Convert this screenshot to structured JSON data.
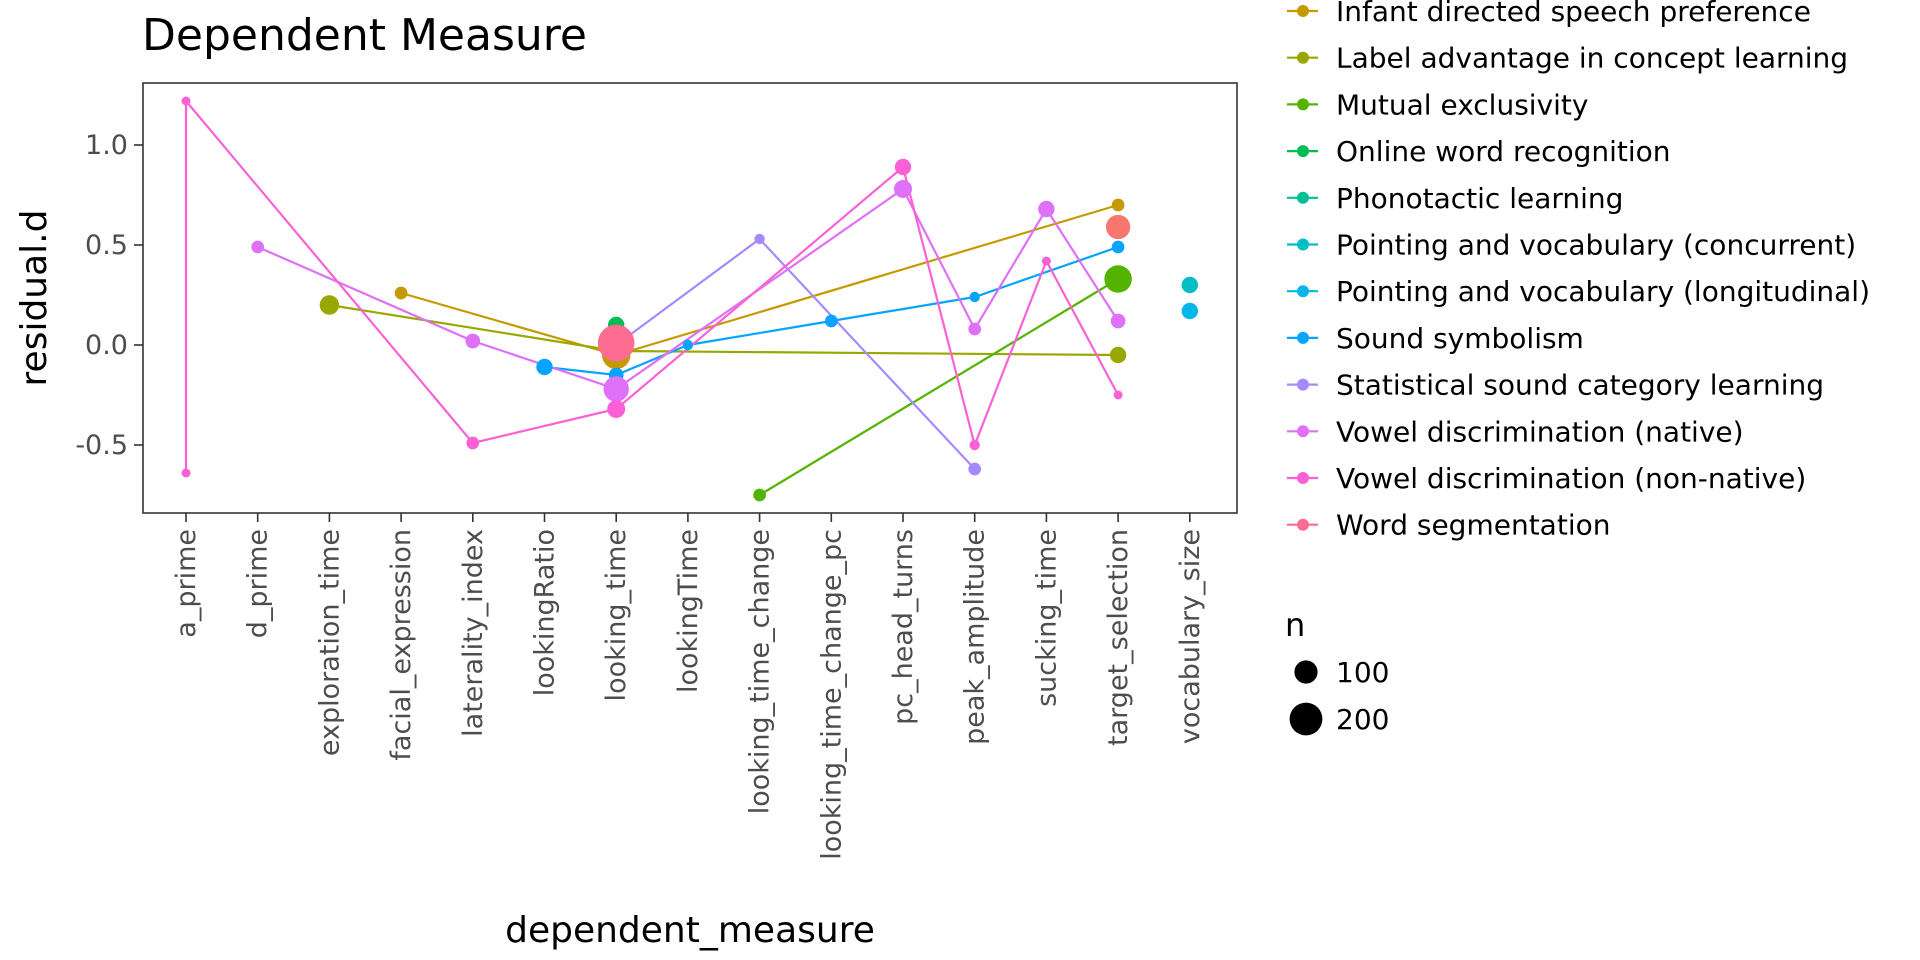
{
  "chart_data": {
    "type": "scatter",
    "title": "Dependent Measure",
    "xlabel": "dependent_measure",
    "ylabel": "residual.d",
    "categories": [
      "a_prime",
      "d_prime",
      "exploration_time",
      "facial_expression",
      "laterality_index",
      "lookingRatio",
      "looking_time",
      "lookingTime",
      "looking_time_change",
      "looking_time_change_pc",
      "pc_head_turns",
      "peak_amplitude",
      "sucking_time",
      "target_selection",
      "vocabulary_size"
    ],
    "y_ticks": [
      -0.5,
      0.0,
      0.5,
      1.0
    ],
    "y_tick_labels": [
      "-0.5",
      "0.0",
      "0.5",
      "1.0"
    ],
    "ylim": [
      -0.84,
      1.31
    ],
    "grid": false,
    "legend_position": "right",
    "size_legend": {
      "title": "n",
      "entries": [
        {
          "label": "100",
          "value": 100
        },
        {
          "label": "200",
          "value": 200
        }
      ]
    },
    "series": [
      {
        "name": "Infant directed speech preference",
        "color": "#C49A00",
        "points": [
          {
            "x": "facial_expression",
            "y": 0.26,
            "n": 30
          },
          {
            "x": "looking_time",
            "y": -0.05,
            "n": 150
          },
          {
            "x": "target_selection",
            "y": 0.7,
            "n": 30
          }
        ]
      },
      {
        "name": "Label advantage in concept learning",
        "color": "#99A800",
        "points": [
          {
            "x": "exploration_time",
            "y": 0.2,
            "n": 70
          },
          {
            "x": "looking_time",
            "y": -0.03,
            "n": 60
          },
          {
            "x": "target_selection",
            "y": -0.05,
            "n": 50
          }
        ]
      },
      {
        "name": "Mutual exclusivity",
        "color": "#53B400",
        "points": [
          {
            "x": "looking_time_change",
            "y": -0.75,
            "n": 30
          },
          {
            "x": "target_selection",
            "y": 0.33,
            "n": 140
          }
        ]
      },
      {
        "name": "Online word recognition",
        "color": "#00BC56",
        "points": [
          {
            "x": "looking_time",
            "y": 0.1,
            "n": 50
          }
        ]
      },
      {
        "name": "Phonotactic learning",
        "color": "#00C094",
        "points": [
          {
            "x": "looking_time",
            "y": 0.05,
            "n": 40
          }
        ]
      },
      {
        "name": "Pointing and vocabulary (concurrent)",
        "color": "#00BFC4",
        "points": [
          {
            "x": "vocabulary_size",
            "y": 0.3,
            "n": 50
          }
        ]
      },
      {
        "name": "Pointing and vocabulary (longitudinal)",
        "color": "#00B6EB",
        "points": [
          {
            "x": "vocabulary_size",
            "y": 0.17,
            "n": 50
          }
        ]
      },
      {
        "name": "Sound symbolism",
        "color": "#06A4FF",
        "points": [
          {
            "x": "lookingRatio",
            "y": -0.11,
            "n": 50
          },
          {
            "x": "looking_time",
            "y": -0.15,
            "n": 40
          },
          {
            "x": "lookingTime",
            "y": 0.0,
            "n": 20
          },
          {
            "x": "looking_time_change_pc",
            "y": 0.12,
            "n": 30
          },
          {
            "x": "peak_amplitude",
            "y": 0.24,
            "n": 20
          },
          {
            "x": "target_selection",
            "y": 0.49,
            "n": 30
          }
        ]
      },
      {
        "name": "Statistical sound category learning",
        "color": "#A58AFF",
        "points": [
          {
            "x": "looking_time",
            "y": 0.0,
            "n": 30
          },
          {
            "x": "looking_time_change",
            "y": 0.53,
            "n": 20
          },
          {
            "x": "peak_amplitude",
            "y": -0.62,
            "n": 30
          }
        ]
      },
      {
        "name": "Vowel discrimination (native)",
        "color": "#DF70F8",
        "points": [
          {
            "x": "d_prime",
            "y": 0.49,
            "n": 30
          },
          {
            "x": "laterality_index",
            "y": 0.02,
            "n": 40
          },
          {
            "x": "looking_time",
            "y": -0.22,
            "n": 120
          },
          {
            "x": "pc_head_turns",
            "y": 0.78,
            "n": 60
          },
          {
            "x": "peak_amplitude",
            "y": 0.08,
            "n": 30
          },
          {
            "x": "sucking_time",
            "y": 0.68,
            "n": 50
          },
          {
            "x": "target_selection",
            "y": 0.12,
            "n": 40
          }
        ]
      },
      {
        "name": "Vowel discrimination (non-native)",
        "color": "#FB61D7",
        "points": [
          {
            "x": "a_prime",
            "y": -0.64,
            "n": 15
          },
          {
            "x": "a_prime",
            "y": 1.22,
            "n": 15
          },
          {
            "x": "laterality_index",
            "y": -0.49,
            "n": 30
          },
          {
            "x": "looking_time",
            "y": -0.32,
            "n": 60
          },
          {
            "x": "pc_head_turns",
            "y": 0.89,
            "n": 50
          },
          {
            "x": "peak_amplitude",
            "y": -0.5,
            "n": 20
          },
          {
            "x": "sucking_time",
            "y": 0.42,
            "n": 15
          },
          {
            "x": "target_selection",
            "y": -0.25,
            "n": 15
          }
        ]
      },
      {
        "name": "Word segmentation",
        "color": "#FF6C91",
        "points": [
          {
            "x": "looking_time",
            "y": 0.01,
            "n": 250
          }
        ]
      },
      {
        "name": "",
        "color": "#F8766D",
        "points": [
          {
            "x": "target_selection",
            "y": 0.59,
            "n": 110
          }
        ]
      }
    ]
  }
}
